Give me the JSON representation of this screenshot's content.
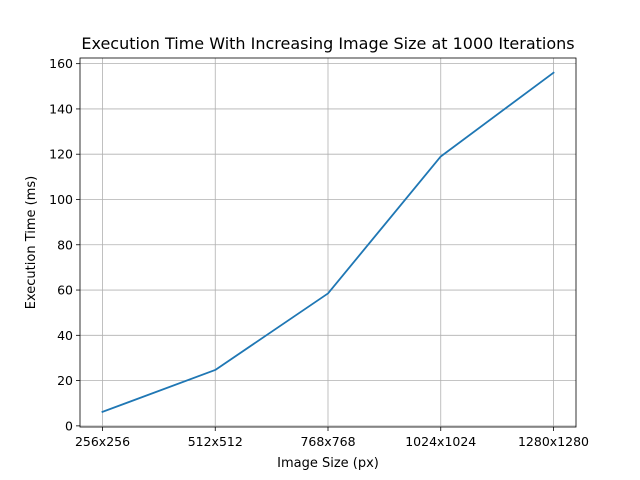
{
  "chart_data": {
    "type": "line",
    "title": "Execution Time With Increasing Image Size at 1000 Iterations",
    "xlabel": "Image Size (px)",
    "ylabel": "Execution Time (ms)",
    "categories": [
      "256x256",
      "512x512",
      "768x768",
      "1024x1024",
      "1280x1280"
    ],
    "series": [
      {
        "values": [
          6.2,
          24.7,
          58.5,
          119.0,
          156.0
        ],
        "color": "#1f77b4"
      }
    ],
    "ylim": [
      -0.5,
      162.5
    ],
    "yticks": [
      0,
      20,
      40,
      60,
      80,
      100,
      120,
      140,
      160
    ],
    "grid": true
  }
}
